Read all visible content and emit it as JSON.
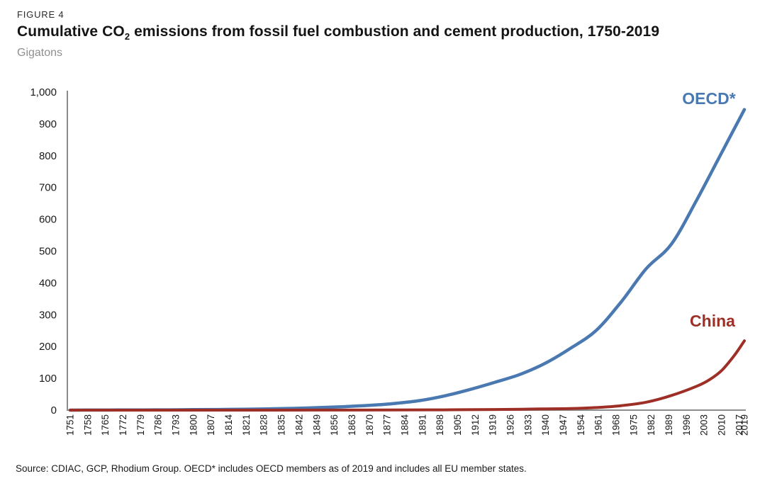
{
  "figure_label": "FIGURE 4",
  "title": {
    "prefix": "Cumulative CO",
    "subscript": "2",
    "suffix": " emissions from fossil fuel combustion and cement production, 1750-2019"
  },
  "subtitle": "Gigatons",
  "source": "Source: CDIAC, GCP, Rhodium Group. OECD* includes OECD members as of 2019 and includes all EU member states.",
  "colors": {
    "oecd_line": "#4a79b2",
    "china_line": "#9e2f26",
    "axis": "#8c8c8c",
    "tick_text": "#1a1a1a",
    "subtitle_text": "#8f8f8f"
  },
  "chart_data": {
    "type": "line",
    "title": "Cumulative CO2 emissions from fossil fuel combustion and cement production, 1750-2019",
    "ylabel": "Gigatons",
    "ylim": [
      0,
      1000
    ],
    "ytick_interval": 100,
    "ytick_labels": [
      "0",
      "100",
      "200",
      "300",
      "400",
      "500",
      "600",
      "700",
      "800",
      "900",
      "1,000"
    ],
    "xlim": [
      1751,
      2019
    ],
    "xtick_labels": [
      "1751",
      "1758",
      "1765",
      "1772",
      "1779",
      "1786",
      "1793",
      "1800",
      "1807",
      "1814",
      "1821",
      "1828",
      "1835",
      "1842",
      "1849",
      "1856",
      "1863",
      "1870",
      "1877",
      "1884",
      "1891",
      "1898",
      "1905",
      "1912",
      "1919",
      "1926",
      "1933",
      "1940",
      "1947",
      "1954",
      "1961",
      "1968",
      "1975",
      "1982",
      "1989",
      "1996",
      "2003",
      "2010",
      "2017",
      "2019"
    ],
    "grid": false,
    "legend_position": "inline-labels-at-line-ends",
    "series": [
      {
        "name": "OECD*",
        "color": "#4a79b2",
        "points": [
          [
            1751,
            0
          ],
          [
            1760,
            0.2
          ],
          [
            1770,
            0.4
          ],
          [
            1780,
            0.7
          ],
          [
            1790,
            1
          ],
          [
            1800,
            1.5
          ],
          [
            1810,
            2
          ],
          [
            1820,
            3
          ],
          [
            1830,
            4
          ],
          [
            1840,
            5.5
          ],
          [
            1850,
            8
          ],
          [
            1860,
            11
          ],
          [
            1870,
            15
          ],
          [
            1880,
            21
          ],
          [
            1890,
            30
          ],
          [
            1900,
            45
          ],
          [
            1910,
            65
          ],
          [
            1920,
            88
          ],
          [
            1930,
            113
          ],
          [
            1940,
            148
          ],
          [
            1950,
            195
          ],
          [
            1960,
            250
          ],
          [
            1970,
            340
          ],
          [
            1980,
            445
          ],
          [
            1990,
            522
          ],
          [
            2000,
            660
          ],
          [
            2010,
            810
          ],
          [
            2019,
            945
          ]
        ]
      },
      {
        "name": "China",
        "color": "#9e2f26",
        "points": [
          [
            1751,
            0
          ],
          [
            1800,
            0
          ],
          [
            1850,
            0.2
          ],
          [
            1880,
            0.5
          ],
          [
            1900,
            1
          ],
          [
            1920,
            2
          ],
          [
            1930,
            3
          ],
          [
            1940,
            4
          ],
          [
            1950,
            5
          ],
          [
            1960,
            8
          ],
          [
            1970,
            14
          ],
          [
            1980,
            25
          ],
          [
            1990,
            46
          ],
          [
            2000,
            75
          ],
          [
            2005,
            95
          ],
          [
            2010,
            125
          ],
          [
            2015,
            172
          ],
          [
            2019,
            218
          ]
        ]
      }
    ]
  }
}
